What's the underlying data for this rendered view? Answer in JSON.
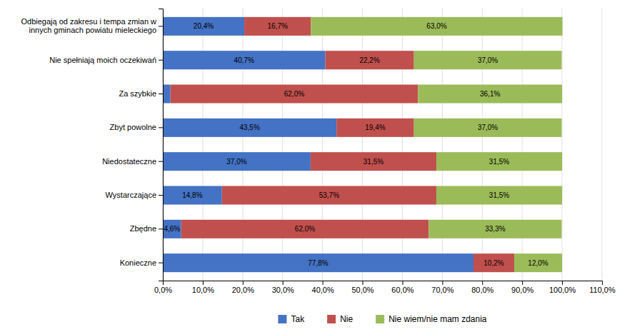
{
  "chart_data": {
    "type": "bar",
    "orientation": "horizontal",
    "stacked": true,
    "data_labels": true,
    "grid": true,
    "legend": "bottom",
    "categories": [
      "Odbiegają od zakresu i tempa zmian w\ninnych gminach powiatu mieleckiego",
      "Nie spełniają moich oczekiwań",
      "Za szybkie",
      "Zbyt powolne",
      "Niedostateczne",
      "Wystarczające",
      "Zbędne",
      "Konieczne"
    ],
    "series": [
      {
        "name": "Tak",
        "color": "#4472C4",
        "values": [
          20.4,
          40.7,
          1.9,
          43.5,
          37.0,
          14.8,
          4.6,
          77.8
        ],
        "value_labels": [
          "20,4%",
          "40,7%",
          null,
          "43,5%",
          "37,0%",
          "14,8%",
          "4,6%",
          "77,8%"
        ]
      },
      {
        "name": "Nie",
        "color": "#C0504D",
        "values": [
          16.7,
          22.2,
          62.0,
          19.4,
          31.5,
          53.7,
          62.0,
          10.2
        ],
        "value_labels": [
          "16,7%",
          "22,2%",
          "62,0%",
          "19,4%",
          "31,5%",
          "53,7%",
          "62,0%",
          "10,2%"
        ]
      },
      {
        "name": "Nie wiem/nie mam zdania",
        "color": "#9BBB59",
        "values": [
          63.0,
          37.0,
          36.1,
          37.0,
          31.5,
          31.5,
          33.3,
          12.0
        ],
        "value_labels": [
          "63,0%",
          "37,0%",
          "36,1%",
          "37,0%",
          "31,5%",
          "31,5%",
          "33,3%",
          "12,0%"
        ]
      }
    ],
    "xlim": [
      0,
      110
    ],
    "xticks": [
      {
        "value": 0,
        "label": "0,0%"
      },
      {
        "value": 10,
        "label": "10,0%"
      },
      {
        "value": 20,
        "label": "20,0%"
      },
      {
        "value": 30,
        "label": "30,0%"
      },
      {
        "value": 40,
        "label": "40,0%"
      },
      {
        "value": 50,
        "label": "50,0%"
      },
      {
        "value": 60,
        "label": "60,0%"
      },
      {
        "value": 70,
        "label": "70,0%"
      },
      {
        "value": 80,
        "label": "80,0%"
      },
      {
        "value": 90,
        "label": "90,0%"
      },
      {
        "value": 100,
        "label": "100,0%"
      },
      {
        "value": 110,
        "label": "110,0%"
      }
    ]
  }
}
